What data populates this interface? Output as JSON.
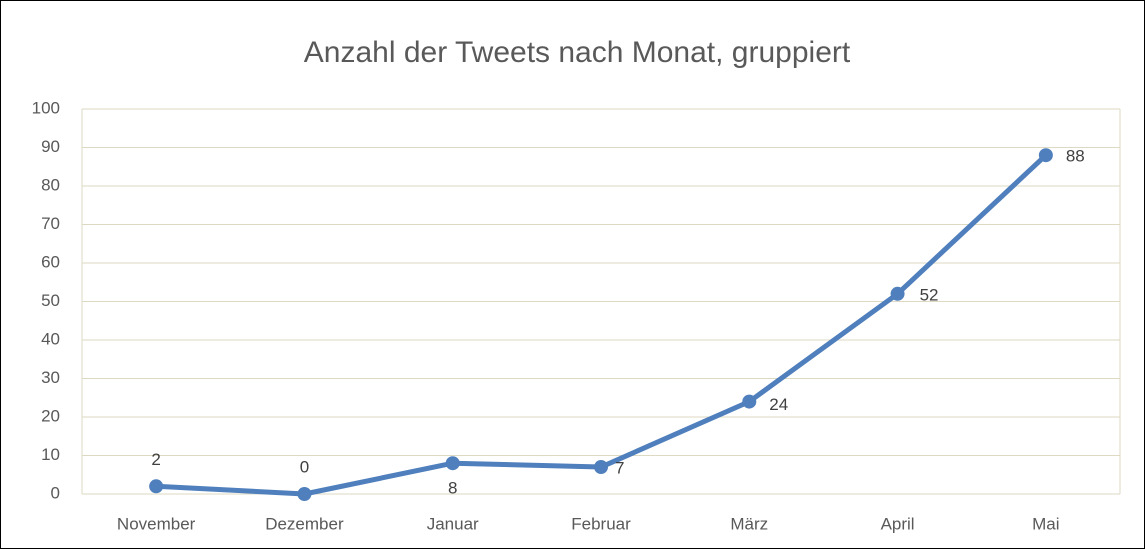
{
  "chart_data": {
    "type": "line",
    "title": "Anzahl der Tweets nach Monat, gruppiert",
    "categories": [
      "November",
      "Dezember",
      "Januar",
      "Februar",
      "März",
      "April",
      "Mai"
    ],
    "series": [
      {
        "color": "#4f7fbc",
        "values": [
          2,
          0,
          8,
          7,
          24,
          52,
          88
        ]
      }
    ],
    "ylim": [
      0,
      100
    ],
    "yticks": [
      0,
      10,
      20,
      30,
      40,
      50,
      60,
      70,
      80,
      90,
      100
    ],
    "grid": true
  }
}
